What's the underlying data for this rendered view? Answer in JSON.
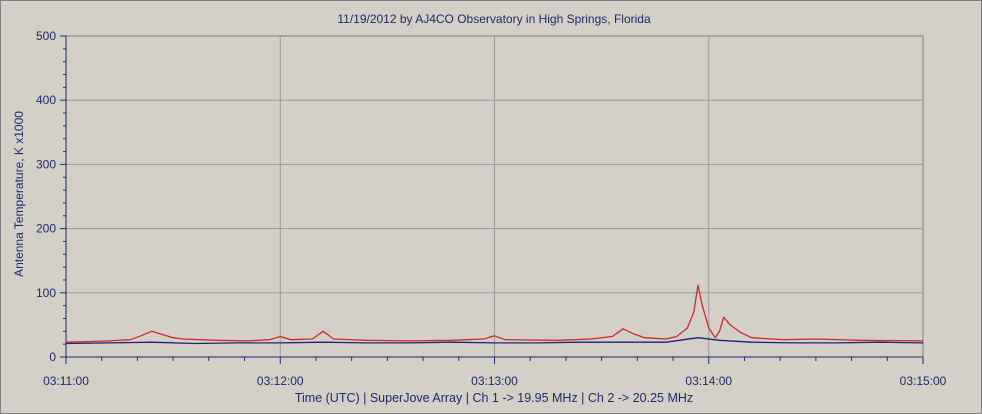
{
  "chart_data": {
    "type": "line",
    "title": "11/19/2012  by  AJ4CO Observatory  in  High Springs, Florida",
    "xlabel": "Time (UTC)   |   SuperJove Array   |   Ch 1 -> 19.95 MHz   |   Ch 2 -> 20.25 MHz",
    "ylabel": "Antenna Temperature, K x1000",
    "x_ticks": [
      "03:11:00",
      "03:12:00",
      "03:13:00",
      "03:14:00",
      "03:15:00"
    ],
    "x_range_minutes": [
      0,
      4
    ],
    "y_ticks": [
      "0",
      "100",
      "200",
      "300",
      "400",
      "500"
    ],
    "ylim": [
      0,
      500
    ],
    "grid": true,
    "background": "#d4d0c8",
    "plot_background": "#d4d0c8",
    "grid_color": "#9a9a9a",
    "series": [
      {
        "color": "#cc2a2a",
        "points": [
          [
            0.0,
            23
          ],
          [
            0.1,
            24
          ],
          [
            0.2,
            25
          ],
          [
            0.3,
            27
          ],
          [
            0.35,
            33
          ],
          [
            0.4,
            40
          ],
          [
            0.45,
            35
          ],
          [
            0.5,
            30
          ],
          [
            0.55,
            28
          ],
          [
            0.7,
            26
          ],
          [
            0.85,
            25
          ],
          [
            0.95,
            27
          ],
          [
            1.0,
            32
          ],
          [
            1.05,
            27
          ],
          [
            1.15,
            28
          ],
          [
            1.2,
            40
          ],
          [
            1.25,
            28
          ],
          [
            1.4,
            26
          ],
          [
            1.6,
            25
          ],
          [
            1.8,
            26
          ],
          [
            1.95,
            28
          ],
          [
            2.0,
            33
          ],
          [
            2.05,
            27
          ],
          [
            2.3,
            26
          ],
          [
            2.45,
            28
          ],
          [
            2.55,
            32
          ],
          [
            2.6,
            44
          ],
          [
            2.65,
            36
          ],
          [
            2.7,
            30
          ],
          [
            2.8,
            28
          ],
          [
            2.85,
            32
          ],
          [
            2.9,
            45
          ],
          [
            2.93,
            70
          ],
          [
            2.95,
            112
          ],
          [
            2.97,
            80
          ],
          [
            3.0,
            45
          ],
          [
            3.03,
            30
          ],
          [
            3.05,
            40
          ],
          [
            3.07,
            62
          ],
          [
            3.1,
            50
          ],
          [
            3.15,
            38
          ],
          [
            3.2,
            30
          ],
          [
            3.35,
            27
          ],
          [
            3.5,
            28
          ],
          [
            3.7,
            26
          ],
          [
            4.0,
            25
          ]
        ]
      },
      {
        "color": "#1a237e",
        "points": [
          [
            0.0,
            21
          ],
          [
            0.2,
            22
          ],
          [
            0.4,
            23
          ],
          [
            0.6,
            21
          ],
          [
            0.8,
            22
          ],
          [
            1.0,
            22
          ],
          [
            1.2,
            23
          ],
          [
            1.4,
            22
          ],
          [
            1.6,
            22
          ],
          [
            1.8,
            23
          ],
          [
            2.0,
            22
          ],
          [
            2.2,
            22
          ],
          [
            2.4,
            23
          ],
          [
            2.6,
            23
          ],
          [
            2.8,
            23
          ],
          [
            2.95,
            30
          ],
          [
            3.05,
            26
          ],
          [
            3.2,
            23
          ],
          [
            3.4,
            22
          ],
          [
            3.6,
            22
          ],
          [
            3.8,
            23
          ],
          [
            4.0,
            22
          ]
        ]
      }
    ]
  }
}
